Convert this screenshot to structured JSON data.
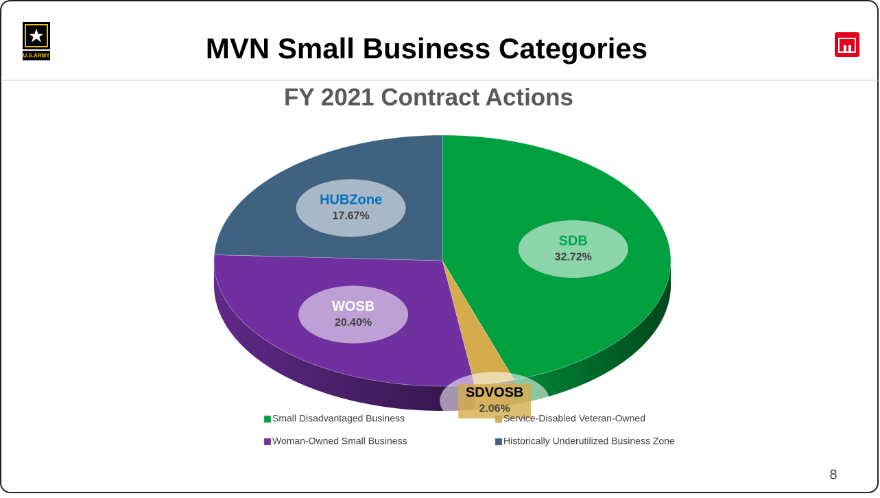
{
  "logo_text": "U.S.ARMY",
  "slide_title": "MVN Small Business Categories",
  "page_number": "8",
  "chart_data": {
    "type": "pie",
    "title": "FY 2021 Contract Actions",
    "categories": [
      "SDB",
      "SDVOSB",
      "WOSB",
      "HUBZone"
    ],
    "values": [
      32.72,
      2.06,
      20.4,
      17.67
    ],
    "value_labels": [
      "32.72%",
      "2.06%",
      "20.40%",
      "17.67%"
    ],
    "colors": [
      "#00a040",
      "#d4ac4c",
      "#7030a0",
      "#3f6280"
    ],
    "label_colors": [
      "#00a651",
      "#000000",
      "#ffffff",
      "#0070c0"
    ],
    "legend_names": [
      "Small Disadvantaged Business",
      "Service-Disabled Veteran-Owned",
      "Woman-Owned Small Business",
      "Historically Underutilized Business Zone"
    ],
    "legend": "bottom"
  }
}
